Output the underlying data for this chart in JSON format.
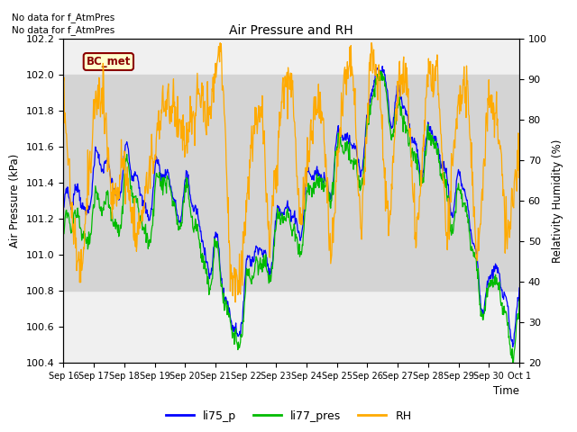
{
  "title": "Air Pressure and RH",
  "ylabel_left": "Air Pressure (kPa)",
  "ylabel_right": "Relativity Humidity (%)",
  "xlabel": "Time",
  "ylim_left": [
    100.4,
    102.2
  ],
  "ylim_right": [
    20,
    100
  ],
  "annotations": [
    "No data for f_AtmPres",
    "No data for f_AtmPres"
  ],
  "bc_met_label": "BC_met",
  "legend_labels": [
    "li75_p",
    "li77_pres",
    "RH"
  ],
  "legend_colors": [
    "#0000ff",
    "#00bb00",
    "#ffaa00"
  ],
  "line_colors": {
    "li75_p": "#0000ff",
    "li77_pres": "#00bb00",
    "RH": "#ffaa00"
  },
  "x_tick_labels": [
    "Sep 16",
    "Sep 17",
    "Sep 18",
    "Sep 19",
    "Sep 20",
    "Sep 21",
    "Sep 22",
    "Sep 23",
    "Sep 24",
    "Sep 25",
    "Sep 26",
    "Sep 27",
    "Sep 28",
    "Sep 29",
    "Sep 30",
    "Oct 1"
  ],
  "gray_band": [
    100.8,
    102.0
  ],
  "background_color": "#f0f0f0",
  "figsize": [
    6.4,
    4.8
  ],
  "dpi": 100
}
